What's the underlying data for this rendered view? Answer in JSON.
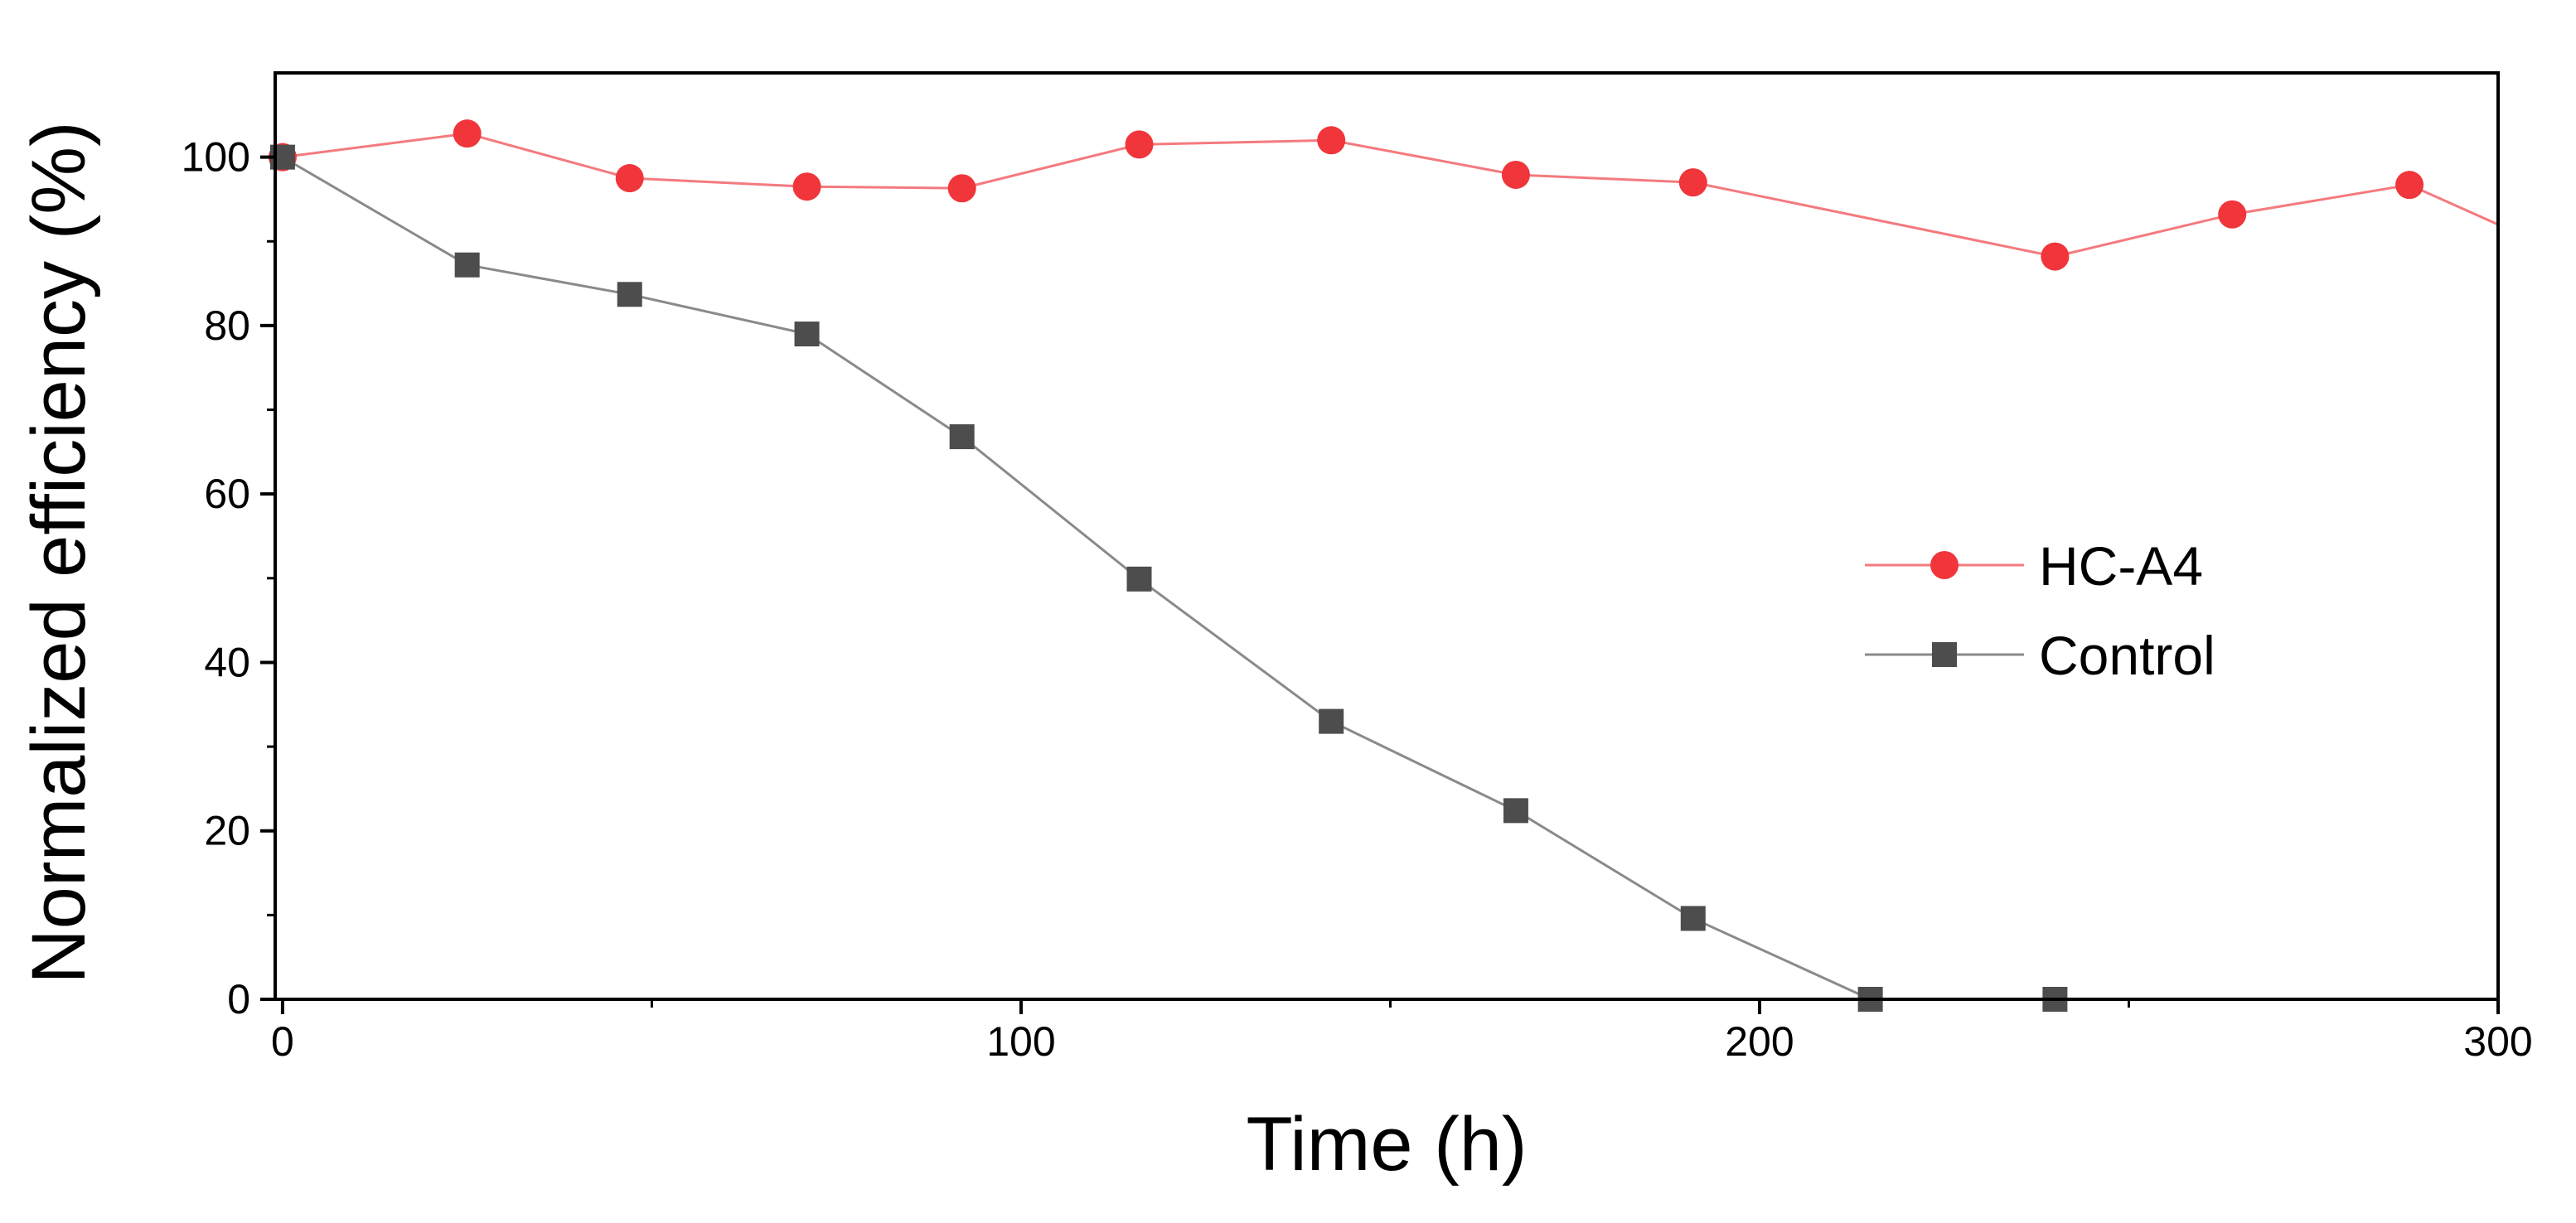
{
  "chart_data": {
    "type": "line",
    "xlabel": "Time (h)",
    "ylabel": "Normalized efficiency (%)",
    "xlim": [
      -1,
      300
    ],
    "ylim": [
      0,
      110
    ],
    "xticks": [
      0,
      100,
      200,
      300
    ],
    "yticks": [
      0,
      20,
      40,
      60,
      80,
      100
    ],
    "legend_position": "right-center",
    "grid": false,
    "series": [
      {
        "name": "HC-A4",
        "color": "#f0353b",
        "line_color": "#f47a7e",
        "marker": "circle",
        "x": [
          0,
          25,
          47,
          71,
          92,
          116,
          142,
          167,
          191,
          240,
          264,
          288,
          300
        ],
        "y": [
          100,
          102.8,
          97.5,
          96.5,
          96.3,
          101.5,
          102,
          97.9,
          97,
          88.2,
          93.2,
          96.7,
          92
        ],
        "marker_count": 12
      },
      {
        "name": "Control",
        "color": "#4d4d4d",
        "line_color": "#8a8a8a",
        "marker": "square",
        "x": [
          0,
          25,
          47,
          71,
          92,
          116,
          142,
          167,
          191,
          215,
          240
        ],
        "y": [
          100,
          87.2,
          83.7,
          79,
          66.8,
          49.9,
          33,
          22.4,
          9.6,
          0,
          0
        ],
        "marker_count": 11
      }
    ]
  }
}
